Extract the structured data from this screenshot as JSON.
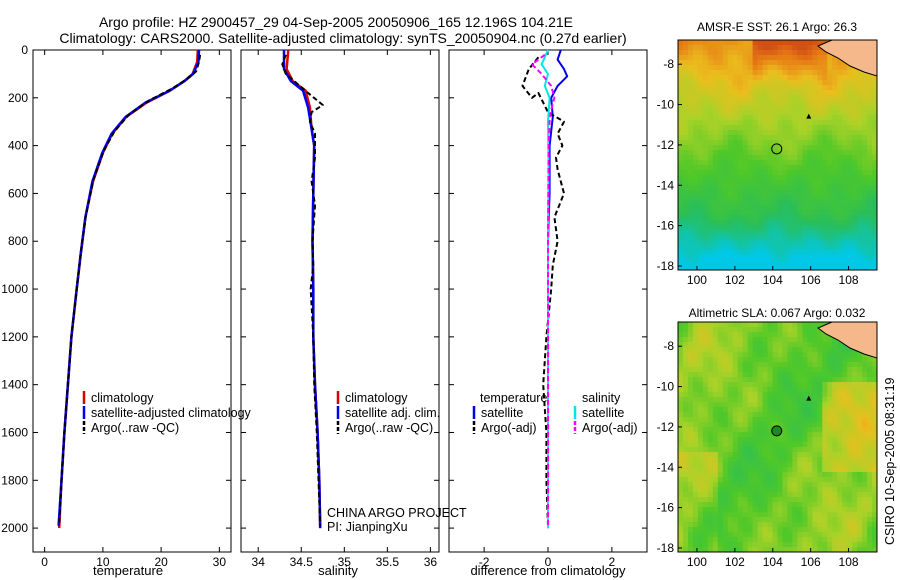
{
  "title": {
    "line1": "Argo profile: HZ 2900457_29 04-Sep-2005 20050906_165 12.196S 104.21E",
    "line2": "Climatology: CARS2000. Satellite-adjusted climatology: synTS_20050904.nc (0.27d earlier)"
  },
  "credit": "CSIRO 10-Sep-2005 08:31:19",
  "project": {
    "line1": "CHINA ARGO PROJECT",
    "line2": "PI: JianpingXu"
  },
  "colors": {
    "climatology": "#dd0000",
    "satellite": "#0000ee",
    "argo": "#000000",
    "salinity_satellite": "#00e5e5",
    "salinity_argo": "#ff00ff",
    "land": "#f5b88a"
  },
  "chart_data": [
    {
      "type": "line",
      "name": "temperature-profile",
      "xlabel": "temperature",
      "xlim": [
        -2,
        32
      ],
      "ylim": [
        0,
        2100
      ],
      "y_reversed": true,
      "xticks": [
        0,
        10,
        20,
        30
      ],
      "yticks": [
        0,
        200,
        400,
        600,
        800,
        1000,
        1200,
        1400,
        1600,
        1800,
        2000
      ],
      "legend": [
        "climatology",
        "satellite-adjusted climatology",
        "Argo(..raw -QC)"
      ],
      "series": [
        {
          "name": "climatology",
          "points": [
            [
              26.3,
              0
            ],
            [
              26.2,
              50
            ],
            [
              25.4,
              100
            ],
            [
              24,
              130
            ],
            [
              21.5,
              170
            ],
            [
              17.5,
              220
            ],
            [
              14,
              280
            ],
            [
              11.6,
              350
            ],
            [
              10,
              430
            ],
            [
              8.3,
              550
            ],
            [
              7,
              700
            ],
            [
              6.2,
              850
            ],
            [
              5.5,
              1000
            ],
            [
              4.6,
              1200
            ],
            [
              4,
              1400
            ],
            [
              3.4,
              1600
            ],
            [
              2.9,
              1800
            ],
            [
              2.5,
              2000
            ]
          ]
        },
        {
          "name": "satellite",
          "points": [
            [
              26.5,
              0
            ],
            [
              26.4,
              50
            ],
            [
              25.5,
              100
            ],
            [
              24,
              130
            ],
            [
              21.5,
              170
            ],
            [
              17.3,
              220
            ],
            [
              13.9,
              280
            ],
            [
              11.5,
              350
            ],
            [
              9.9,
              430
            ],
            [
              8.2,
              550
            ],
            [
              7,
              700
            ],
            [
              6.2,
              850
            ],
            [
              5.5,
              1000
            ],
            [
              4.6,
              1200
            ],
            [
              4,
              1400
            ],
            [
              3.4,
              1600
            ],
            [
              2.9,
              1800
            ],
            [
              2.4,
              1990
            ]
          ]
        },
        {
          "name": "argo",
          "points": [
            [
              26.7,
              20
            ],
            [
              26.5,
              50
            ],
            [
              26,
              90
            ],
            [
              24.5,
              120
            ],
            [
              22,
              160
            ],
            [
              18,
              210
            ],
            [
              14.5,
              270
            ],
            [
              12,
              340
            ],
            [
              10.2,
              420
            ],
            [
              8.4,
              540
            ],
            [
              7.1,
              690
            ],
            [
              6.2,
              850
            ],
            [
              5.5,
              1000
            ],
            [
              4.6,
              1200
            ],
            [
              4,
              1400
            ],
            [
              3.4,
              1600
            ],
            [
              2.9,
              1800
            ],
            [
              2.5,
              1990
            ]
          ]
        }
      ]
    },
    {
      "type": "line",
      "name": "salinity-profile",
      "xlabel": "salinity",
      "xlim": [
        33.8,
        36.1
      ],
      "ylim": [
        0,
        2100
      ],
      "y_reversed": true,
      "xticks": [
        34,
        34.5,
        35,
        35.5,
        36
      ],
      "legend": [
        "climatology",
        "satellite adj. clim.",
        "Argo(..raw -QC)"
      ],
      "series": [
        {
          "name": "climatology",
          "points": [
            [
              34.35,
              0
            ],
            [
              34.33,
              80
            ],
            [
              34.4,
              130
            ],
            [
              34.55,
              170
            ],
            [
              34.6,
              240
            ],
            [
              34.62,
              330
            ],
            [
              34.65,
              400
            ],
            [
              34.64,
              600
            ],
            [
              34.63,
              800
            ],
            [
              34.64,
              1000
            ],
            [
              34.64,
              1200
            ],
            [
              34.66,
              1400
            ],
            [
              34.69,
              1600
            ],
            [
              34.71,
              1800
            ],
            [
              34.72,
              2000
            ]
          ]
        },
        {
          "name": "satellite",
          "points": [
            [
              34.3,
              0
            ],
            [
              34.3,
              80
            ],
            [
              34.38,
              130
            ],
            [
              34.52,
              170
            ],
            [
              34.58,
              240
            ],
            [
              34.62,
              330
            ],
            [
              34.65,
              400
            ],
            [
              34.64,
              600
            ],
            [
              34.63,
              800
            ],
            [
              34.64,
              1000
            ],
            [
              34.64,
              1200
            ],
            [
              34.66,
              1400
            ],
            [
              34.69,
              1600
            ],
            [
              34.71,
              1800
            ],
            [
              34.72,
              2000
            ]
          ]
        },
        {
          "name": "argo",
          "points": [
            [
              34.32,
              20
            ],
            [
              34.28,
              60
            ],
            [
              34.32,
              100
            ],
            [
              34.45,
              140
            ],
            [
              34.58,
              180
            ],
            [
              34.75,
              230
            ],
            [
              34.62,
              260
            ],
            [
              34.6,
              300
            ],
            [
              34.66,
              350
            ],
            [
              34.66,
              450
            ],
            [
              34.62,
              550
            ],
            [
              34.66,
              650
            ],
            [
              34.63,
              800
            ],
            [
              34.64,
              900
            ],
            [
              34.61,
              1000
            ],
            [
              34.64,
              1200
            ],
            [
              34.65,
              1400
            ],
            [
              34.68,
              1600
            ],
            [
              34.7,
              1800
            ],
            [
              34.72,
              1990
            ]
          ]
        }
      ]
    },
    {
      "type": "line",
      "name": "difference-profile",
      "xlabel": "difference from climatology",
      "xlim": [
        -3.1,
        3.1
      ],
      "ylim": [
        0,
        2100
      ],
      "y_reversed": true,
      "xticks": [
        -2,
        0,
        2
      ],
      "legend_temperature": {
        "title": "temperature",
        "items": [
          "satellite",
          "Argo(-adj)"
        ]
      },
      "legend_salinity": {
        "title": "salinity",
        "items": [
          "satellite",
          "Argo(-adj)"
        ]
      },
      "series": [
        {
          "name": "temperature-satellite",
          "points": [
            [
              0.4,
              0
            ],
            [
              0.3,
              40
            ],
            [
              0.5,
              80
            ],
            [
              0.6,
              110
            ],
            [
              0.3,
              150
            ],
            [
              0.1,
              200
            ],
            [
              0.15,
              280
            ],
            [
              0.05,
              400
            ],
            [
              0.05,
              600
            ],
            [
              0.0,
              800
            ],
            [
              0.0,
              1000
            ],
            [
              0.0,
              1200
            ],
            [
              0.0,
              1500
            ],
            [
              0.0,
              1800
            ],
            [
              0.0,
              2000
            ]
          ]
        },
        {
          "name": "temperature-argo",
          "points": [
            [
              -0.3,
              30
            ],
            [
              -0.6,
              80
            ],
            [
              -0.8,
              150
            ],
            [
              -0.5,
              200
            ],
            [
              -0.3,
              180
            ],
            [
              0.0,
              260
            ],
            [
              0.5,
              300
            ],
            [
              0.3,
              350
            ],
            [
              0.45,
              400
            ],
            [
              0.25,
              450
            ],
            [
              0.3,
              500
            ],
            [
              0.5,
              600
            ],
            [
              0.2,
              700
            ],
            [
              0.3,
              800
            ],
            [
              0.15,
              900
            ],
            [
              0.1,
              1000
            ],
            [
              -0.05,
              1200
            ],
            [
              -0.15,
              1400
            ],
            [
              -0.05,
              1600
            ],
            [
              -0.05,
              1800
            ],
            [
              0.0,
              1990
            ]
          ]
        },
        {
          "name": "salinity-satellite",
          "points": [
            [
              0.0,
              0
            ],
            [
              -0.2,
              60
            ],
            [
              0.0,
              100
            ],
            [
              -0.1,
              150
            ],
            [
              0.05,
              200
            ],
            [
              0.0,
              300
            ],
            [
              0.02,
              500
            ],
            [
              0.0,
              800
            ],
            [
              0.0,
              1200
            ],
            [
              0.0,
              1600
            ],
            [
              0.0,
              2000
            ]
          ]
        },
        {
          "name": "salinity-argo",
          "points": [
            [
              -0.1,
              20
            ],
            [
              -0.5,
              60
            ],
            [
              -0.2,
              100
            ],
            [
              0.1,
              150
            ],
            [
              0.2,
              200
            ],
            [
              0.1,
              250
            ],
            [
              0.05,
              300
            ],
            [
              0.02,
              400
            ],
            [
              0.0,
              800
            ],
            [
              0.0,
              1200
            ],
            [
              0.0,
              1600
            ],
            [
              0.0,
              1990
            ]
          ]
        }
      ]
    },
    {
      "type": "heatmap",
      "name": "amsre-sst-map",
      "title": "AMSR-E SST: 26.1 Argo: 26.3",
      "xlim": [
        99,
        109.5
      ],
      "ylim": [
        -18.2,
        -6.8
      ],
      "xticks": [
        100,
        102,
        104,
        106,
        108
      ],
      "yticks": [
        -8,
        -10,
        -12,
        -14,
        -16,
        -18
      ],
      "argo_position": [
        104.21,
        -12.196
      ],
      "argo_marker": "open-circle",
      "point_marker": [
        105.9,
        -10.6
      ]
    },
    {
      "type": "heatmap",
      "name": "altimetric-sla-map",
      "title": "Altimetric SLA: 0.067 Argo: 0.032",
      "xlim": [
        99,
        109.5
      ],
      "ylim": [
        -18.2,
        -6.8
      ],
      "xticks": [
        100,
        102,
        104,
        106,
        108
      ],
      "yticks": [
        -8,
        -10,
        -12,
        -14,
        -16,
        -18
      ],
      "argo_position": [
        104.21,
        -12.196
      ],
      "argo_marker": "filled-circle",
      "point_marker": [
        105.9,
        -10.6
      ]
    }
  ]
}
